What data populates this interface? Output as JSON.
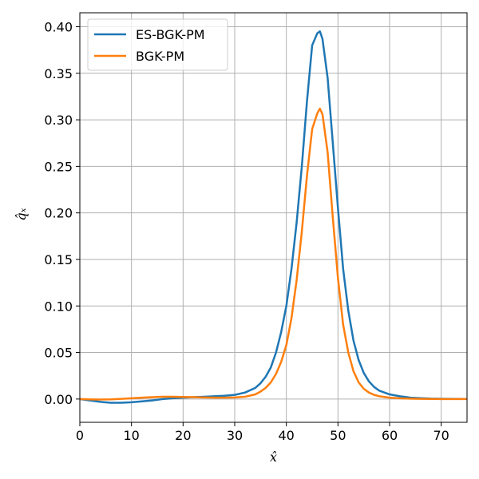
{
  "chart_data": {
    "type": "line",
    "title": "",
    "xlabel": "x̂",
    "ylabel": "q̂ₓ",
    "xlim": [
      0,
      75
    ],
    "ylim": [
      -0.025,
      0.415
    ],
    "xticks": [
      0,
      10,
      20,
      30,
      40,
      50,
      60,
      70
    ],
    "xtick_labels": [
      "0",
      "10",
      "20",
      "30",
      "40",
      "50",
      "60",
      "70"
    ],
    "yticks": [
      0.0,
      0.05,
      0.1,
      0.15,
      0.2,
      0.25,
      0.3,
      0.35,
      0.4
    ],
    "ytick_labels": [
      "0.00",
      "0.05",
      "0.10",
      "0.15",
      "0.20",
      "0.25",
      "0.30",
      "0.35",
      "0.40"
    ],
    "grid": true,
    "legend_position": "top-left",
    "series": [
      {
        "name": "ES-BGK-PM",
        "color": "#1f77b4",
        "x": [
          0,
          2,
          4,
          6,
          8,
          10,
          12,
          14,
          16,
          18,
          20,
          22,
          24,
          26,
          28,
          30,
          32,
          34,
          35,
          36,
          37,
          38,
          39,
          40,
          41,
          42,
          43,
          44,
          45,
          46,
          46.5,
          47,
          48,
          49,
          50,
          51,
          52,
          53,
          54,
          55,
          56,
          57,
          58,
          60,
          62,
          64,
          66,
          68,
          70,
          72,
          75
        ],
        "y": [
          0.0,
          -0.0015,
          -0.003,
          -0.004,
          -0.004,
          -0.0035,
          -0.0025,
          -0.0015,
          0.0,
          0.0008,
          0.0015,
          0.002,
          0.0025,
          0.003,
          0.0035,
          0.0045,
          0.007,
          0.012,
          0.017,
          0.024,
          0.034,
          0.05,
          0.072,
          0.1,
          0.14,
          0.19,
          0.25,
          0.32,
          0.38,
          0.393,
          0.395,
          0.387,
          0.345,
          0.275,
          0.205,
          0.14,
          0.095,
          0.063,
          0.042,
          0.028,
          0.019,
          0.013,
          0.009,
          0.005,
          0.003,
          0.0015,
          0.001,
          0.0005,
          0.0003,
          0.0002,
          0.0001
        ]
      },
      {
        "name": "BGK-PM",
        "color": "#ff7f0e",
        "x": [
          0,
          2,
          4,
          6,
          8,
          10,
          12,
          14,
          16,
          18,
          20,
          22,
          24,
          26,
          28,
          30,
          32,
          34,
          35,
          36,
          37,
          38,
          39,
          40,
          41,
          42,
          43,
          44,
          45,
          46,
          46.5,
          47,
          48,
          49,
          50,
          51,
          52,
          53,
          54,
          55,
          56,
          57,
          58,
          60,
          62,
          64,
          66,
          68,
          70,
          72,
          75
        ],
        "y": [
          0.0,
          -0.0003,
          -0.0005,
          -0.0003,
          0.0002,
          0.0008,
          0.0015,
          0.002,
          0.0025,
          0.0025,
          0.0022,
          0.002,
          0.0017,
          0.0015,
          0.0015,
          0.0017,
          0.0025,
          0.005,
          0.008,
          0.012,
          0.018,
          0.027,
          0.04,
          0.058,
          0.087,
          0.128,
          0.18,
          0.24,
          0.29,
          0.307,
          0.312,
          0.306,
          0.265,
          0.195,
          0.13,
          0.08,
          0.05,
          0.03,
          0.018,
          0.011,
          0.007,
          0.0045,
          0.003,
          0.0015,
          0.0008,
          0.0004,
          0.0002,
          0.0001,
          0.0,
          0.0,
          0.0
        ]
      }
    ]
  }
}
